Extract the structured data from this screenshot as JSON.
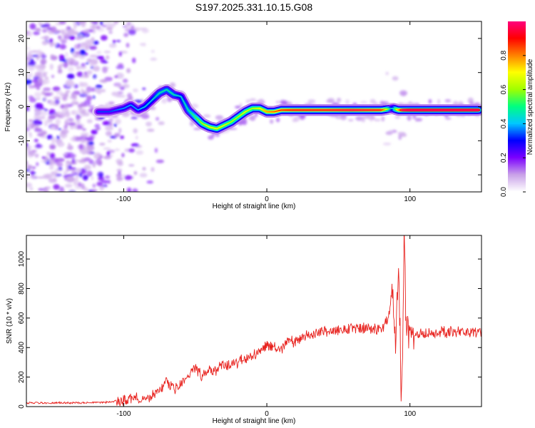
{
  "figure": {
    "title": "S197.2025.331.10.15.G08",
    "colorbar_label": "Normalized spectral amplitude"
  },
  "chart_data": [
    {
      "type": "heatmap",
      "title": "S197.2025.331.10.15.G08",
      "xlabel": "Height of straight line (km)",
      "ylabel": "Frequency (Hz)",
      "xlim": [
        -168,
        150
      ],
      "ylim": [
        -25,
        25
      ],
      "xticks": [
        -100,
        0,
        100
      ],
      "yticks": [
        -20,
        -10,
        0,
        10,
        20
      ],
      "xtick_labels": [
        "-100",
        "0",
        "100"
      ],
      "ytick_labels": [
        "-20",
        "-10",
        "0",
        "10",
        "20"
      ],
      "colorbar": {
        "label": "Normalized spectral amplitude",
        "range": [
          0.0,
          1.0
        ],
        "ticks": [
          0.0,
          0.2,
          0.4,
          0.6,
          0.8
        ],
        "tick_labels": [
          "0.0",
          "0.2",
          "0.4",
          "0.6",
          "0.8"
        ],
        "colors": [
          "#ffffff",
          "#c8a0e8",
          "#7b00ff",
          "#0000ff",
          "#00c8ff",
          "#00ff80",
          "#a0ff00",
          "#ffff00",
          "#ff8000",
          "#ff0000",
          "#ff0080"
        ]
      },
      "ridge": {
        "x": [
          -118,
          -110,
          -100,
          -95,
          -90,
          -85,
          -80,
          -75,
          -70,
          -65,
          -60,
          -55,
          -50,
          -45,
          -40,
          -35,
          -30,
          -25,
          -20,
          -15,
          -10,
          -5,
          0,
          5,
          10,
          20,
          40,
          60,
          80,
          88,
          92,
          95,
          100,
          120,
          148
        ],
        "freq": [
          -1.5,
          -1.5,
          -0.5,
          0.5,
          -1.0,
          0.0,
          2.0,
          4.0,
          5.0,
          3.5,
          3.0,
          -1.0,
          -3.0,
          -5.0,
          -6.0,
          -6.5,
          -5.5,
          -4.5,
          -3.0,
          -1.5,
          -0.5,
          -0.5,
          -1.5,
          -1.5,
          -1.0,
          -1.0,
          -1.0,
          -1.0,
          -1.0,
          -0.5,
          -1.0,
          -1.0,
          -1.0,
          -1.0,
          -1.0
        ],
        "amplitude": [
          0.25,
          0.25,
          0.3,
          0.3,
          0.3,
          0.35,
          0.35,
          0.4,
          0.4,
          0.4,
          0.35,
          0.4,
          0.45,
          0.55,
          0.6,
          0.6,
          0.6,
          0.55,
          0.55,
          0.6,
          0.55,
          0.6,
          0.7,
          0.75,
          0.8,
          0.85,
          0.85,
          0.9,
          0.85,
          0.3,
          0.7,
          0.95,
          1.0,
          1.0,
          1.0
        ]
      }
    },
    {
      "type": "line",
      "xlabel": "Height of straight line (km)",
      "ylabel": "SNR (10 * v/v)",
      "xlim": [
        -168,
        150
      ],
      "ylim": [
        0,
        1160
      ],
      "xticks": [
        -100,
        0,
        100
      ],
      "yticks": [
        0,
        200,
        400,
        600,
        800,
        1000
      ],
      "xtick_labels": [
        "-100",
        "0",
        "100"
      ],
      "ytick_labels": [
        "0",
        "200",
        "400",
        "600",
        "800",
        "1000"
      ],
      "series": [
        {
          "color": "#e8231f",
          "x": [
            -168,
            -150,
            -130,
            -110,
            -100,
            -90,
            -80,
            -75,
            -70,
            -65,
            -60,
            -55,
            -50,
            -45,
            -40,
            -35,
            -30,
            -25,
            -20,
            -15,
            -10,
            -5,
            0,
            5,
            10,
            15,
            20,
            25,
            30,
            40,
            50,
            60,
            70,
            80,
            85,
            88,
            90,
            92,
            94,
            95,
            96,
            97,
            98,
            100,
            110,
            120,
            130,
            140,
            150
          ],
          "y": [
            25,
            25,
            25,
            30,
            45,
            55,
            70,
            100,
            180,
            120,
            150,
            210,
            260,
            210,
            250,
            240,
            290,
            280,
            300,
            330,
            340,
            380,
            420,
            410,
            380,
            450,
            430,
            480,
            490,
            510,
            520,
            530,
            530,
            520,
            600,
            800,
            450,
            1000,
            60,
            400,
            1150,
            700,
            550,
            480,
            490,
            500,
            510,
            500,
            510
          ]
        }
      ]
    }
  ]
}
